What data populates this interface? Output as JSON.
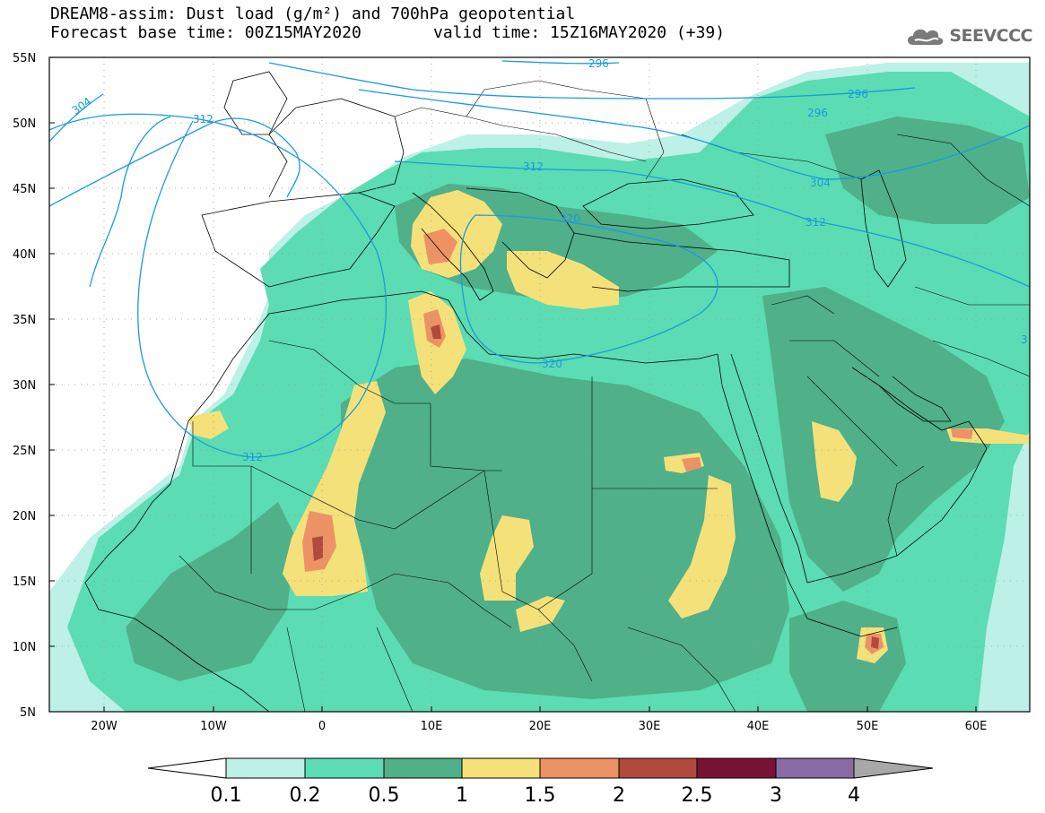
{
  "header": {
    "line1": "DREAM8-assim: Dust load (g/m²) and 700hPa geopotential",
    "line2_left": "Forecast base time: 00Z15MAY2020",
    "line2_right": "valid time: 15Z16MAY2020 (+39)"
  },
  "logo": {
    "text": "SEEVCCC",
    "icon": "cloud-logo-icon"
  },
  "map": {
    "lat_labels": [
      "55N",
      "50N",
      "45N",
      "40N",
      "35N",
      "30N",
      "25N",
      "20N",
      "15N",
      "10N",
      "5N"
    ],
    "lon_labels": [
      "20W",
      "10W",
      "0",
      "10E",
      "20E",
      "30E",
      "40E",
      "50E",
      "60E"
    ],
    "contour_labels": [
      "304",
      "312",
      "296",
      "296",
      "296",
      "312",
      "304",
      "312",
      "320",
      "320",
      "312",
      "3"
    ]
  },
  "colorbar": {
    "labels": [
      "0.1",
      "0.2",
      "0.5",
      "1",
      "1.5",
      "2",
      "2.5",
      "3",
      "4"
    ],
    "colors": [
      "#bdf0e6",
      "#5bdcb2",
      "#4fb08a",
      "#f5e17a",
      "#ec9265",
      "#b04a3c",
      "#7a1236",
      "#8a6aa3"
    ],
    "under_color": "#ffffff",
    "over_color": "#a8a8a8"
  },
  "colors": {
    "contour": "#1a9ae0",
    "lightest": "#bdf0e6",
    "light": "#5bdcb2",
    "medium": "#4fb08a",
    "yellow": "#f5e17a",
    "orange": "#ec9265",
    "red": "#b04a3c",
    "maroon": "#7a1236"
  }
}
